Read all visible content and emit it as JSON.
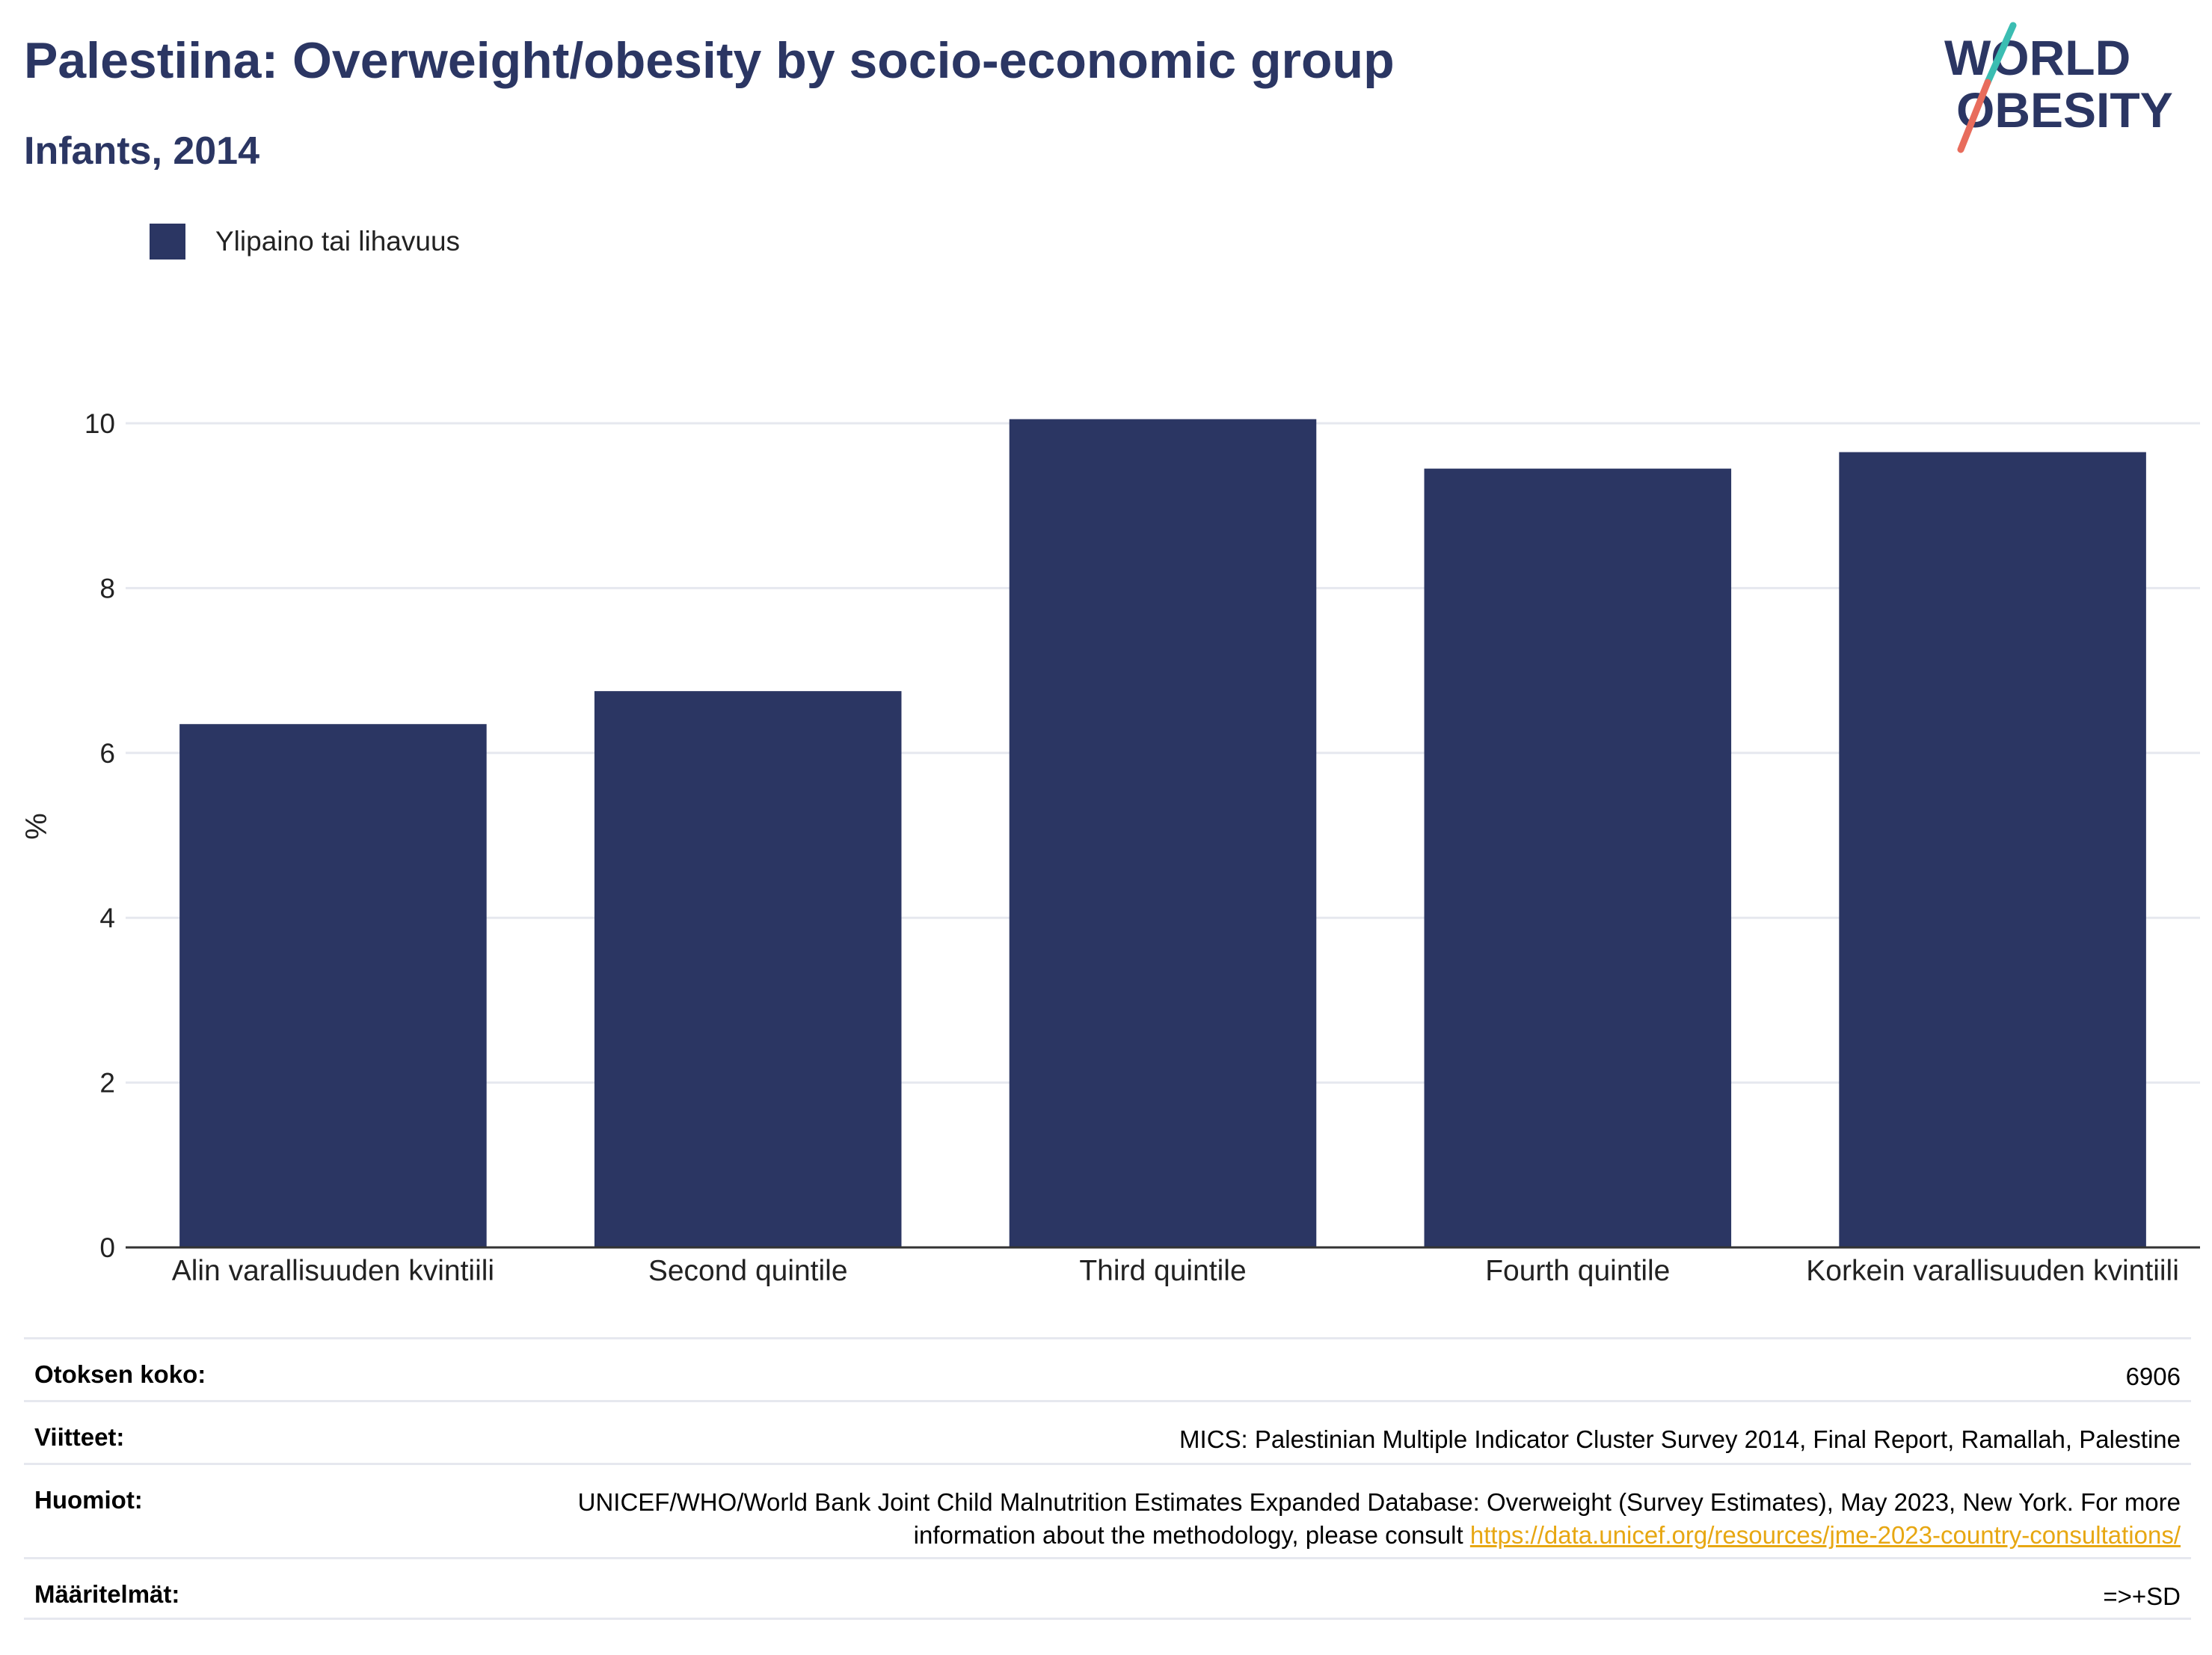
{
  "title": "Palestiina: Overweight/obesity by socio-economic group",
  "subtitle": "Infants, 2014",
  "logo": {
    "line1": "WORLD",
    "line2": "OBESITY"
  },
  "legend": {
    "label": "Ylipaino tai lihavuus"
  },
  "colors": {
    "bar": "#2b3663",
    "title": "#2b3663",
    "link": "#e7a712",
    "grid": "#e6e8ef",
    "axis": "#333333"
  },
  "chart_data": {
    "type": "bar",
    "categories": [
      "Alin varallisuuden kvintiili",
      "Second quintile",
      "Third quintile",
      "Fourth quintile",
      "Korkein varallisuuden kvintiili"
    ],
    "series": [
      {
        "name": "Ylipaino tai lihavuus",
        "values": [
          6.35,
          6.75,
          10.05,
          9.45,
          9.65
        ]
      }
    ],
    "ylabel": "%",
    "ylim": [
      0,
      10
    ],
    "yticks": [
      0,
      2,
      4,
      6,
      8,
      10
    ],
    "grid": true,
    "legend_position": "top-left"
  },
  "meta": {
    "sample_label": "Otoksen koko:",
    "sample_value": "6906",
    "refs_label": "Viitteet:",
    "refs_value": "MICS: Palestinian Multiple Indicator Cluster Survey 2014, Final Report, Ramallah, Palestine",
    "notes_label": "Huomiot:",
    "notes_text": "UNICEF/WHO/World Bank Joint Child Malnutrition Estimates Expanded Database: Overweight (Survey Estimates), May 2023, New York. For more information about the methodology, please consult",
    "notes_link": "https://data.unicef.org/resources/jme-2023-country-consultations/",
    "defs_label": "Määritelmät:",
    "defs_value": "=>+SD"
  }
}
